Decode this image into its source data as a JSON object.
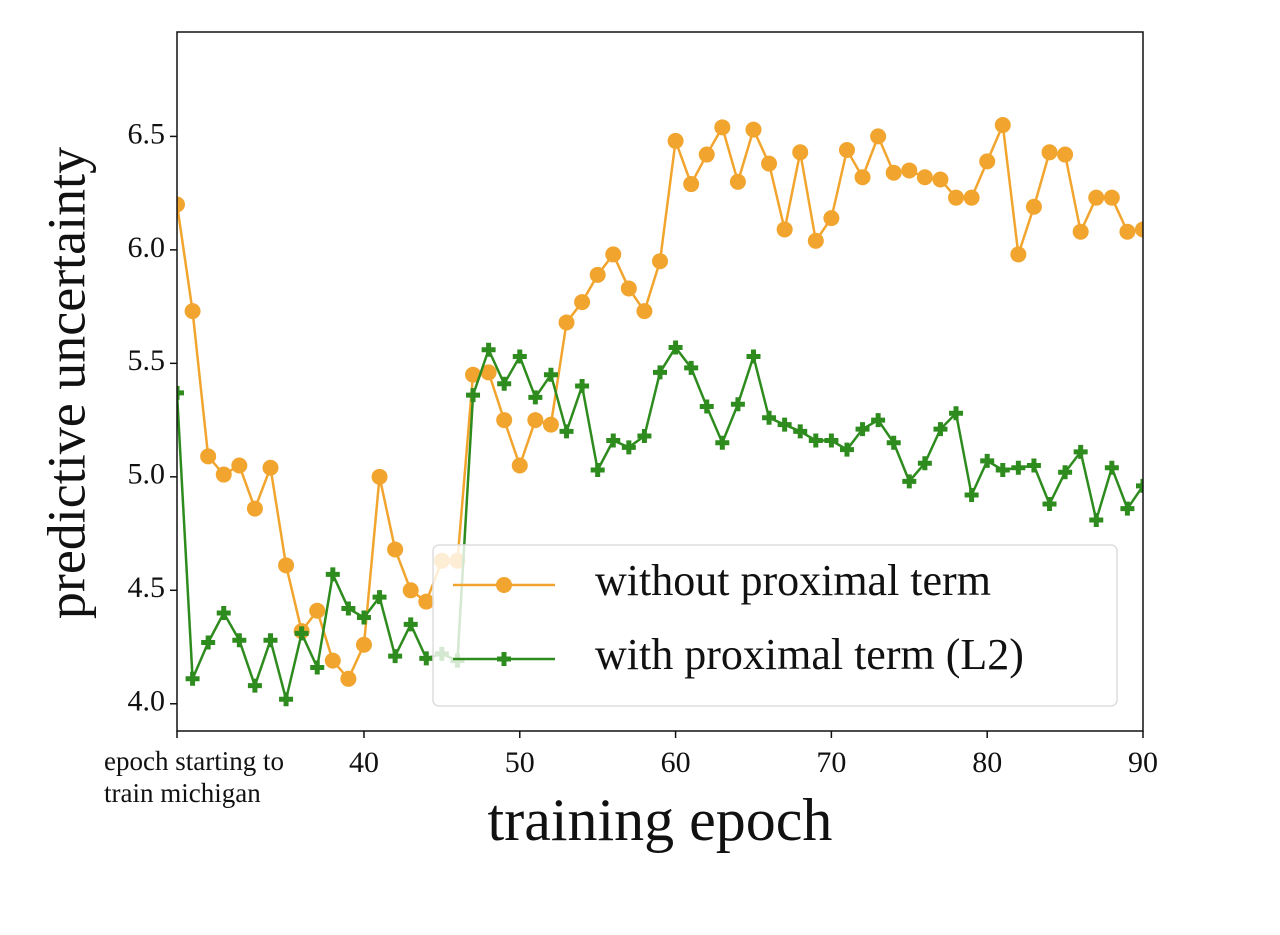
{
  "chart_data": {
    "type": "line",
    "xlabel": "training epoch",
    "ylabel": "predictive uncertainty",
    "x": [
      28,
      29,
      30,
      31,
      32,
      33,
      34,
      35,
      36,
      37,
      38,
      39,
      40,
      41,
      42,
      43,
      44,
      45,
      46,
      47,
      48,
      49,
      50,
      51,
      52,
      53,
      54,
      55,
      56,
      57,
      58,
      59,
      60,
      61,
      62,
      63,
      64,
      65,
      66,
      67,
      68,
      69,
      70,
      71,
      72,
      73,
      74,
      75,
      76,
      77,
      78,
      79,
      80,
      81,
      82,
      83,
      84,
      85,
      86,
      87,
      88,
      89,
      90
    ],
    "series": [
      {
        "name": "without proximal term",
        "color": "#f2a52e",
        "marker": "circle",
        "values": [
          6.2,
          5.73,
          5.09,
          5.01,
          5.05,
          4.86,
          5.04,
          4.61,
          4.32,
          4.41,
          4.19,
          4.11,
          4.26,
          5.0,
          4.68,
          4.5,
          4.45,
          4.63,
          4.63,
          5.45,
          5.46,
          5.25,
          5.05,
          5.25,
          5.23,
          5.68,
          5.77,
          5.89,
          5.98,
          5.83,
          5.73,
          5.95,
          6.48,
          6.29,
          6.42,
          6.54,
          6.3,
          6.53,
          6.38,
          6.09,
          6.43,
          6.04,
          6.14,
          6.44,
          6.32,
          6.5,
          6.34,
          6.35,
          6.32,
          6.31,
          6.23,
          6.23,
          6.39,
          6.55,
          5.98,
          6.19,
          6.43,
          6.42,
          6.08,
          6.23,
          6.23,
          6.08,
          6.09
        ]
      },
      {
        "name": "with proximal term (L2)",
        "color": "#2e8b1e",
        "marker": "plus",
        "values": [
          5.37,
          4.11,
          4.27,
          4.4,
          4.28,
          4.08,
          4.28,
          4.02,
          4.31,
          4.16,
          4.57,
          4.42,
          4.38,
          4.47,
          4.21,
          4.35,
          4.2,
          4.22,
          4.19,
          5.36,
          5.56,
          5.41,
          5.53,
          5.35,
          5.45,
          5.2,
          5.4,
          5.03,
          5.16,
          5.13,
          5.18,
          5.46,
          5.57,
          5.48,
          5.31,
          5.15,
          5.32,
          5.53,
          5.26,
          5.23,
          5.2,
          5.16,
          5.16,
          5.12,
          5.21,
          5.25,
          5.15,
          4.98,
          5.06,
          5.21,
          5.28,
          4.92,
          5.07,
          5.03,
          5.04,
          5.05,
          4.88,
          5.02,
          5.11,
          4.81,
          5.04,
          4.86,
          4.96
        ]
      }
    ],
    "xlim": [
      28,
      90
    ],
    "xticks": [
      {
        "value": 28,
        "label": "epoch starting to train michigan"
      },
      40,
      50,
      60,
      70,
      80,
      90
    ],
    "ylim": [
      3.88,
      6.96
    ],
    "yticks": [
      {
        "value": 4.0,
        "label": "4.0"
      },
      4.5,
      {
        "value": 5.0,
        "label": "5.0"
      },
      5.5,
      {
        "value": 6.0,
        "label": "6.0"
      },
      6.5
    ],
    "grid": false,
    "legend": "lower right"
  }
}
